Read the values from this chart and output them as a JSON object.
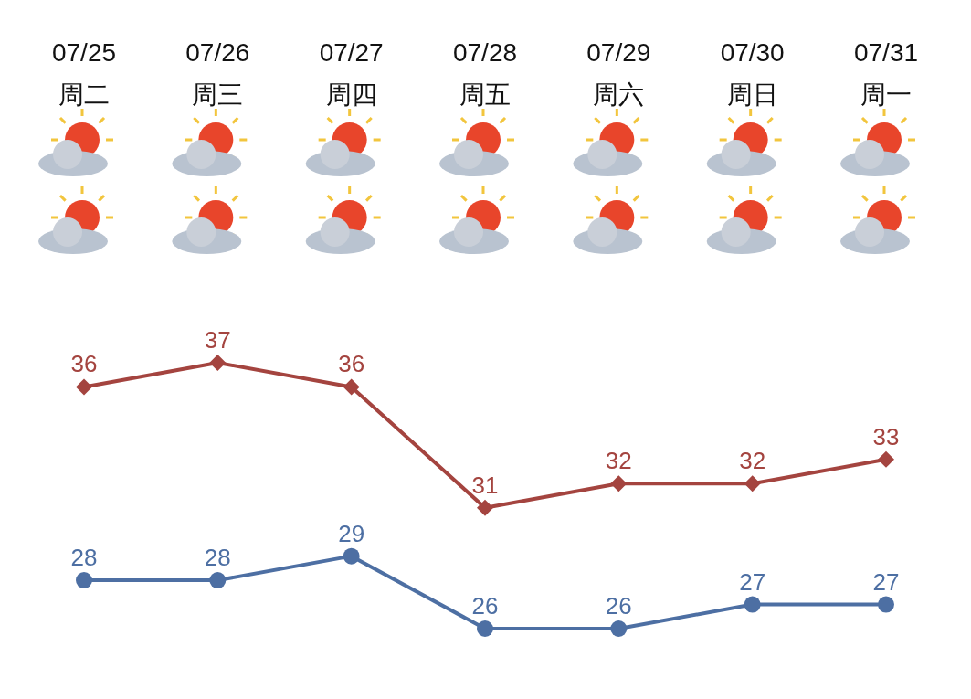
{
  "chart_data": {
    "type": "line",
    "categories": [
      "07/25\n周二",
      "07/26\n周三",
      "07/27\n周四",
      "07/28\n周五",
      "07/29\n周六",
      "07/30\n周日",
      "07/31\n周一"
    ],
    "series": [
      {
        "color": "#a4443f",
        "marker": "diamond",
        "values": [
          36,
          37,
          36,
          31,
          32,
          32,
          33
        ]
      },
      {
        "color": "#4d6fa3",
        "marker": "circle",
        "values": [
          28,
          28,
          29,
          26,
          26,
          27,
          27
        ]
      }
    ],
    "tick_labels": "x",
    "data_labels": true
  }
}
